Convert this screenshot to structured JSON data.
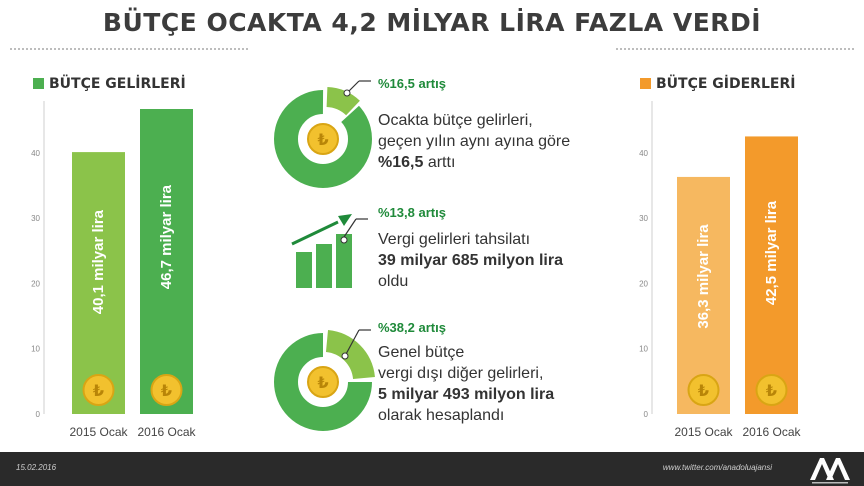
{
  "title": "BÜTÇE OCAKTA 4,2 MİLYAR LİRA FAZLA VERDİ",
  "colors": {
    "green_light": "#8bc34a",
    "green_dark": "#4caf50",
    "orange_light": "#f6b860",
    "orange_dark": "#f39a2b",
    "accent_green": "#1f8a3a",
    "coin": "#f2c12e",
    "footer": "#2a2a2a"
  },
  "chart_data": [
    {
      "type": "bar",
      "title": "BÜTÇE GELİRLERİ",
      "categories": [
        "2015 Ocak",
        "2016 Ocak"
      ],
      "values": [
        40.1,
        46.7
      ],
      "bar_labels": [
        "40,1 milyar lira",
        "46,7 milyar lira"
      ],
      "colors": [
        "#8bc34a",
        "#4caf50"
      ],
      "ylim": [
        0,
        46.7
      ],
      "yticks": [
        "0",
        "10",
        "20",
        "30",
        "40"
      ],
      "grid": false
    },
    {
      "type": "bar",
      "title": "BÜTÇE GİDERLERİ",
      "categories": [
        "2015 Ocak",
        "2016 Ocak"
      ],
      "values": [
        36.3,
        42.5
      ],
      "bar_labels": [
        "36,3 milyar lira",
        "42,5 milyar lira"
      ],
      "colors": [
        "#f6b860",
        "#f39a2b"
      ],
      "ylim": [
        0,
        46.7
      ],
      "yticks": [
        "0",
        "10",
        "20",
        "30",
        "40"
      ],
      "grid": false
    }
  ],
  "annotations": [
    {
      "icon": "donut-icon",
      "percent": "%16,5 artış",
      "lines": [
        [
          {
            "t": "Ocakta bütçe gelirleri,",
            "b": false
          }
        ],
        [
          {
            "t": "geçen yılın aynı ayına göre",
            "b": false
          }
        ],
        [
          {
            "t": "%16,5",
            "b": true
          },
          {
            "t": " arttı",
            "b": false
          }
        ]
      ]
    },
    {
      "icon": "growth-bars-icon",
      "percent": "%13,8 artış",
      "lines": [
        [
          {
            "t": "Vergi gelirleri tahsilatı",
            "b": false
          }
        ],
        [
          {
            "t": "39 milyar 685 milyon lira",
            "b": true
          }
        ],
        [
          {
            "t": "oldu",
            "b": false
          }
        ]
      ]
    },
    {
      "icon": "donut-icon",
      "percent": "%38,2 artış",
      "lines": [
        [
          {
            "t": "Genel bütçe",
            "b": false
          }
        ],
        [
          {
            "t": "vergi dışı diğer gelirleri,",
            "b": false
          }
        ],
        [
          {
            "t": "5 milyar 493 milyon lira",
            "b": true
          }
        ],
        [
          {
            "t": "olarak hesaplandı",
            "b": false
          }
        ]
      ]
    }
  ],
  "coin_symbol": "₺",
  "footer": {
    "date": "15.02.2016",
    "url": "www.twitter.com/anadoluajansi",
    "logo_text": "AA"
  }
}
